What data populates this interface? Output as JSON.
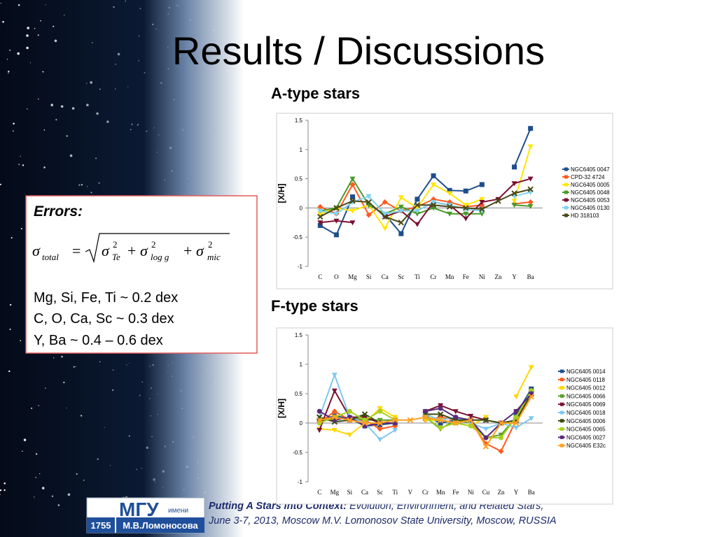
{
  "title": "Results / Discussions",
  "errors": {
    "heading": "Errors:",
    "formula": {
      "symbol": "σ",
      "lhs_sub": "total",
      "operators": [
        "=",
        "+",
        "+"
      ],
      "terms": [
        {
          "sub": "Te",
          "sup": "2"
        },
        {
          "sub": "log g",
          "sup": "2"
        },
        {
          "sub": "mic",
          "sup": "2"
        }
      ]
    },
    "lines": [
      "Mg, Si, Fe, Ti ~ 0.2 dex",
      "C, O, Ca, Sc ~ 0.3 dex",
      "Y, Ba ~ 0.4 – 0.6 dex"
    ]
  },
  "footer": {
    "logo": {
      "name": "МГУ",
      "imeni": "имени",
      "full": "М.В.Ломоносова",
      "year": "1755"
    },
    "conference_bold": "Putting A Stars into Context:",
    "conference": "Evolution, Environment, and Related Stars,",
    "venue": "June 3-7, 2013, Moscow M.V. Lomonosov State University, Moscow, RUSSIA"
  },
  "chart_data": [
    {
      "type": "line",
      "title": "A-type stars",
      "y_label": "[X/H]",
      "categories": [
        "C",
        "O",
        "Mg",
        "Si",
        "Ca",
        "Sc",
        "Ti",
        "Cr",
        "Mn",
        "Fe",
        "Ni",
        "Zn",
        "Y",
        "Ba"
      ],
      "ylim": [
        -1,
        1.5
      ],
      "yticks": [
        -1,
        -0.5,
        0,
        0.5,
        1,
        1.5
      ],
      "grid": false,
      "legend": "right",
      "series": [
        {
          "name": "NGC6405 0047",
          "color": "#1f4e8c",
          "values": [
            -0.3,
            -0.46,
            0.19,
            null,
            -0.11,
            -0.44,
            0.15,
            0.55,
            0.3,
            0.29,
            0.4,
            null,
            0.7,
            1.36
          ]
        },
        {
          "name": "CPD-32 4724",
          "color": "#ff5a1f",
          "values": [
            0.02,
            -0.1,
            0.4,
            -0.12,
            0.1,
            -0.05,
            0.02,
            0.15,
            0.1,
            0.02,
            0.05,
            null,
            0.07,
            0.1
          ]
        },
        {
          "name": "NGC6405 0005",
          "color": "#ffe600",
          "values": [
            -0.1,
            0.0,
            -0.05,
            0.05,
            -0.35,
            0.18,
            0.0,
            0.4,
            0.25,
            0.05,
            0.15,
            null,
            0.12,
            1.05
          ]
        },
        {
          "name": "NGC6405 0048",
          "color": "#4a9a2a",
          "values": [
            -0.05,
            0.0,
            0.5,
            0.05,
            -0.1,
            0.02,
            -0.1,
            0.0,
            -0.1,
            -0.1,
            -0.1,
            null,
            0.05,
            0.03
          ]
        },
        {
          "name": "NGC6405 0053",
          "color": "#7b1030",
          "values": [
            -0.25,
            -0.22,
            -0.25,
            null,
            -0.15,
            -0.05,
            -0.28,
            0.1,
            0.05,
            -0.18,
            0.1,
            0.15,
            0.42,
            0.5
          ]
        },
        {
          "name": "NGC6405 0130",
          "color": "#7fd3f0",
          "values": [
            -0.05,
            -0.1,
            0.1,
            0.2,
            -0.1,
            -0.05,
            -0.05,
            0.1,
            0.05,
            -0.02,
            -0.05,
            null,
            0.2,
            0.27
          ]
        },
        {
          "name": "HD 318103",
          "color": "#4a4a1a",
          "values": [
            -0.15,
            0.0,
            0.12,
            0.1,
            -0.15,
            -0.25,
            0.05,
            0.05,
            0.02,
            0.0,
            -0.02,
            0.12,
            0.25,
            0.32
          ]
        }
      ]
    },
    {
      "type": "line",
      "title": "F-type stars",
      "y_label": "[X/H]",
      "categories": [
        "C",
        "Mg",
        "Si",
        "Ca",
        "Sc",
        "Ti",
        "V",
        "Cr",
        "Mn",
        "Fe",
        "Ni",
        "Cu",
        "Zn",
        "Y",
        "Ba"
      ],
      "ylim": [
        -1,
        1.5
      ],
      "yticks": [
        -1,
        -0.5,
        0,
        0.5,
        1,
        1.5
      ],
      "grid": false,
      "legend": "right",
      "series": [
        {
          "name": "NGC6405 0014",
          "color": "#1f4e8c",
          "values": [
            0.05,
            0.12,
            0.08,
            -0.05,
            -0.03,
            0.0,
            null,
            0.12,
            0.0,
            0.05,
            0.05,
            null,
            null,
            0.15,
            0.58
          ]
        },
        {
          "name": "NGC6405 0118",
          "color": "#ff5a1f",
          "values": [
            0.0,
            0.2,
            0.05,
            0.05,
            -0.1,
            -0.05,
            null,
            0.05,
            0.1,
            0.05,
            0.02,
            -0.35,
            -0.48,
            0.05,
            0.48
          ]
        },
        {
          "name": "NGC6405 0012",
          "color": "#ffd700",
          "values": [
            -0.1,
            -0.12,
            -0.2,
            0.0,
            0.25,
            0.1,
            null,
            0.05,
            0.05,
            0.0,
            -0.05,
            0.1,
            null,
            0.45,
            0.95
          ]
        },
        {
          "name": "NGC6405 0066",
          "color": "#5aa02a",
          "values": [
            0.05,
            0.05,
            0.1,
            0.05,
            0.05,
            0.05,
            null,
            0.1,
            -0.1,
            0.05,
            0.0,
            -0.25,
            -0.2,
            0.1,
            0.55
          ]
        },
        {
          "name": "NGC6405 0069",
          "color": "#7b1030",
          "values": [
            -0.12,
            0.55,
            0.1,
            0.1,
            0.0,
            0.05,
            null,
            0.2,
            0.3,
            0.2,
            0.12,
            0.05,
            null,
            0.2,
            0.5
          ]
        },
        {
          "name": "NGC6405 0018",
          "color": "#7fc8f0",
          "values": [
            0.1,
            0.82,
            0.1,
            0.0,
            -0.28,
            -0.12,
            null,
            0.15,
            0.05,
            0.1,
            0.0,
            -0.1,
            0.0,
            -0.08,
            0.08
          ]
        },
        {
          "name": "NGC6405 0006",
          "color": "#3a4a10",
          "values": [
            0.1,
            0.02,
            0.05,
            0.15,
            0.0,
            0.05,
            null,
            0.15,
            0.15,
            0.05,
            0.05,
            0.05,
            0.0,
            0.05,
            0.5
          ]
        },
        {
          "name": "NGC6405 0065",
          "color": "#a8d020",
          "values": [
            0.0,
            0.1,
            0.2,
            0.05,
            0.2,
            0.05,
            null,
            0.1,
            -0.08,
            0.0,
            -0.05,
            -0.25,
            -0.25,
            0.1,
            0.55
          ]
        },
        {
          "name": "NGC6405 0027",
          "color": "#5a2a7a",
          "values": [
            0.2,
            0.05,
            0.1,
            -0.05,
            0.0,
            0.0,
            null,
            0.2,
            0.25,
            0.1,
            0.05,
            -0.25,
            0.0,
            0.2,
            0.5
          ]
        },
        {
          "name": "NGC6405 E32c",
          "color": "#ffa020",
          "values": [
            0.05,
            0.1,
            0.05,
            0.0,
            0.0,
            0.05,
            0.05,
            0.1,
            0.05,
            0.0,
            0.05,
            -0.4,
            0.0,
            0.0,
            0.45
          ]
        }
      ]
    }
  ]
}
